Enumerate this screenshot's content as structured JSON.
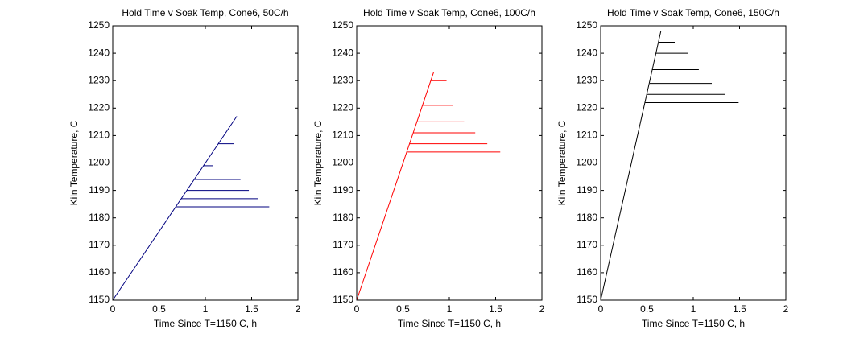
{
  "chart_data": [
    {
      "type": "line",
      "title": "Hold Time v Soak Temp, Cone6, 50C/h",
      "x_label": "Time Since T=1150 C, h",
      "y_label": "Kiln Temperature, C",
      "xlim": [
        0,
        2
      ],
      "xticks": [
        0,
        0.5,
        1,
        1.5,
        2
      ],
      "ylim": [
        1150,
        1250
      ],
      "yticks": [
        1150,
        1160,
        1170,
        1180,
        1190,
        1200,
        1210,
        1220,
        1230,
        1240,
        1250
      ],
      "series": [
        {
          "color": "#00007f",
          "x": [
            0,
            1.34
          ],
          "values": [
            1150,
            1217
          ]
        },
        {
          "color": "#00007f",
          "x": [
            1.14,
            1.31
          ],
          "values": [
            1207,
            1207
          ]
        },
        {
          "color": "#00007f",
          "x": [
            0.98,
            1.08
          ],
          "values": [
            1199,
            1199
          ]
        },
        {
          "color": "#00007f",
          "x": [
            0.88,
            1.38
          ],
          "values": [
            1194,
            1194
          ]
        },
        {
          "color": "#00007f",
          "x": [
            0.8,
            1.47
          ],
          "values": [
            1190,
            1190
          ]
        },
        {
          "color": "#00007f",
          "x": [
            0.74,
            1.57
          ],
          "values": [
            1187,
            1187
          ]
        },
        {
          "color": "#00007f",
          "x": [
            0.68,
            1.69
          ],
          "values": [
            1184,
            1184
          ]
        }
      ]
    },
    {
      "type": "line",
      "title": "Hold Time v Soak Temp, Cone6, 100C/h",
      "x_label": "Time Since T=1150 C, h",
      "y_label": "Kiln Temperature, C",
      "xlim": [
        0,
        2
      ],
      "xticks": [
        0,
        0.5,
        1,
        1.5,
        2
      ],
      "ylim": [
        1150,
        1250
      ],
      "yticks": [
        1150,
        1160,
        1170,
        1180,
        1190,
        1200,
        1210,
        1220,
        1230,
        1240,
        1250
      ],
      "series": [
        {
          "color": "#ff0000",
          "x": [
            0,
            0.83
          ],
          "values": [
            1150,
            1233
          ]
        },
        {
          "color": "#ff0000",
          "x": [
            0.8,
            0.97
          ],
          "values": [
            1230,
            1230
          ]
        },
        {
          "color": "#ff0000",
          "x": [
            0.71,
            1.04
          ],
          "values": [
            1221,
            1221
          ]
        },
        {
          "color": "#ff0000",
          "x": [
            0.65,
            1.16
          ],
          "values": [
            1215,
            1215
          ]
        },
        {
          "color": "#ff0000",
          "x": [
            0.61,
            1.28
          ],
          "values": [
            1211,
            1211
          ]
        },
        {
          "color": "#ff0000",
          "x": [
            0.57,
            1.41
          ],
          "values": [
            1207,
            1207
          ]
        },
        {
          "color": "#ff0000",
          "x": [
            0.54,
            1.55
          ],
          "values": [
            1204,
            1204
          ]
        }
      ]
    },
    {
      "type": "line",
      "title": "Hold Time v Soak Temp, Cone6, 150C/h",
      "x_label": "Time Since T=1150 C, h",
      "y_label": "Kiln Temperature, C",
      "xlim": [
        0,
        2
      ],
      "xticks": [
        0,
        0.5,
        1,
        1.5,
        2
      ],
      "ylim": [
        1150,
        1250
      ],
      "yticks": [
        1150,
        1160,
        1170,
        1180,
        1190,
        1200,
        1210,
        1220,
        1230,
        1240,
        1250
      ],
      "series": [
        {
          "color": "#000000",
          "x": [
            0,
            0.65
          ],
          "values": [
            1150,
            1248
          ]
        },
        {
          "color": "#000000",
          "x": [
            0.63,
            0.8
          ],
          "values": [
            1244,
            1244
          ]
        },
        {
          "color": "#000000",
          "x": [
            0.6,
            0.94
          ],
          "values": [
            1240,
            1240
          ]
        },
        {
          "color": "#000000",
          "x": [
            0.56,
            1.06
          ],
          "values": [
            1234,
            1234
          ]
        },
        {
          "color": "#000000",
          "x": [
            0.53,
            1.2
          ],
          "values": [
            1229,
            1229
          ]
        },
        {
          "color": "#000000",
          "x": [
            0.5,
            1.34
          ],
          "values": [
            1225,
            1225
          ]
        },
        {
          "color": "#000000",
          "x": [
            0.48,
            1.49
          ],
          "values": [
            1222,
            1222
          ]
        }
      ]
    }
  ]
}
